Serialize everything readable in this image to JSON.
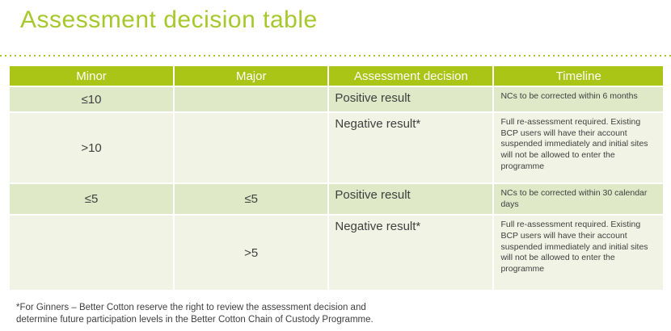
{
  "page": {
    "title": "Assessment decision table",
    "footnote": "*For Ginners – Better Cotton reserve the right to review the assessment decision and determine future participation levels in the Better Cotton Chain of Custody Programme."
  },
  "colors": {
    "accent": "#a7c82c",
    "header_bg": "#aac516",
    "row_green": "#dfe8c7",
    "row_cream": "#f1f4e4",
    "header_text": "#ffffff",
    "body_text": "#3f3f3f"
  },
  "table": {
    "headers": [
      "Minor",
      "Major",
      "Assessment decision",
      "Timeline"
    ],
    "rows": [
      {
        "minor": "≤10",
        "major": "",
        "decision": "Positive result",
        "timeline": "NCs to be corrected within 6 months"
      },
      {
        "minor": ">10",
        "major": "",
        "decision": "Negative result*",
        "timeline": "Full re-assessment required. Existing BCP users will have their account suspended immediately and initial sites will not be allowed to enter the programme"
      },
      {
        "minor": "≤5",
        "major": "≤5",
        "decision": "Positive result",
        "timeline": "NCs to be corrected within 30 calendar days"
      },
      {
        "minor": "",
        "major": ">5",
        "decision": "Negative result*",
        "timeline": "Full re-assessment required. Existing BCP users will have their account suspended immediately and initial sites will not be allowed to enter the programme"
      }
    ]
  }
}
